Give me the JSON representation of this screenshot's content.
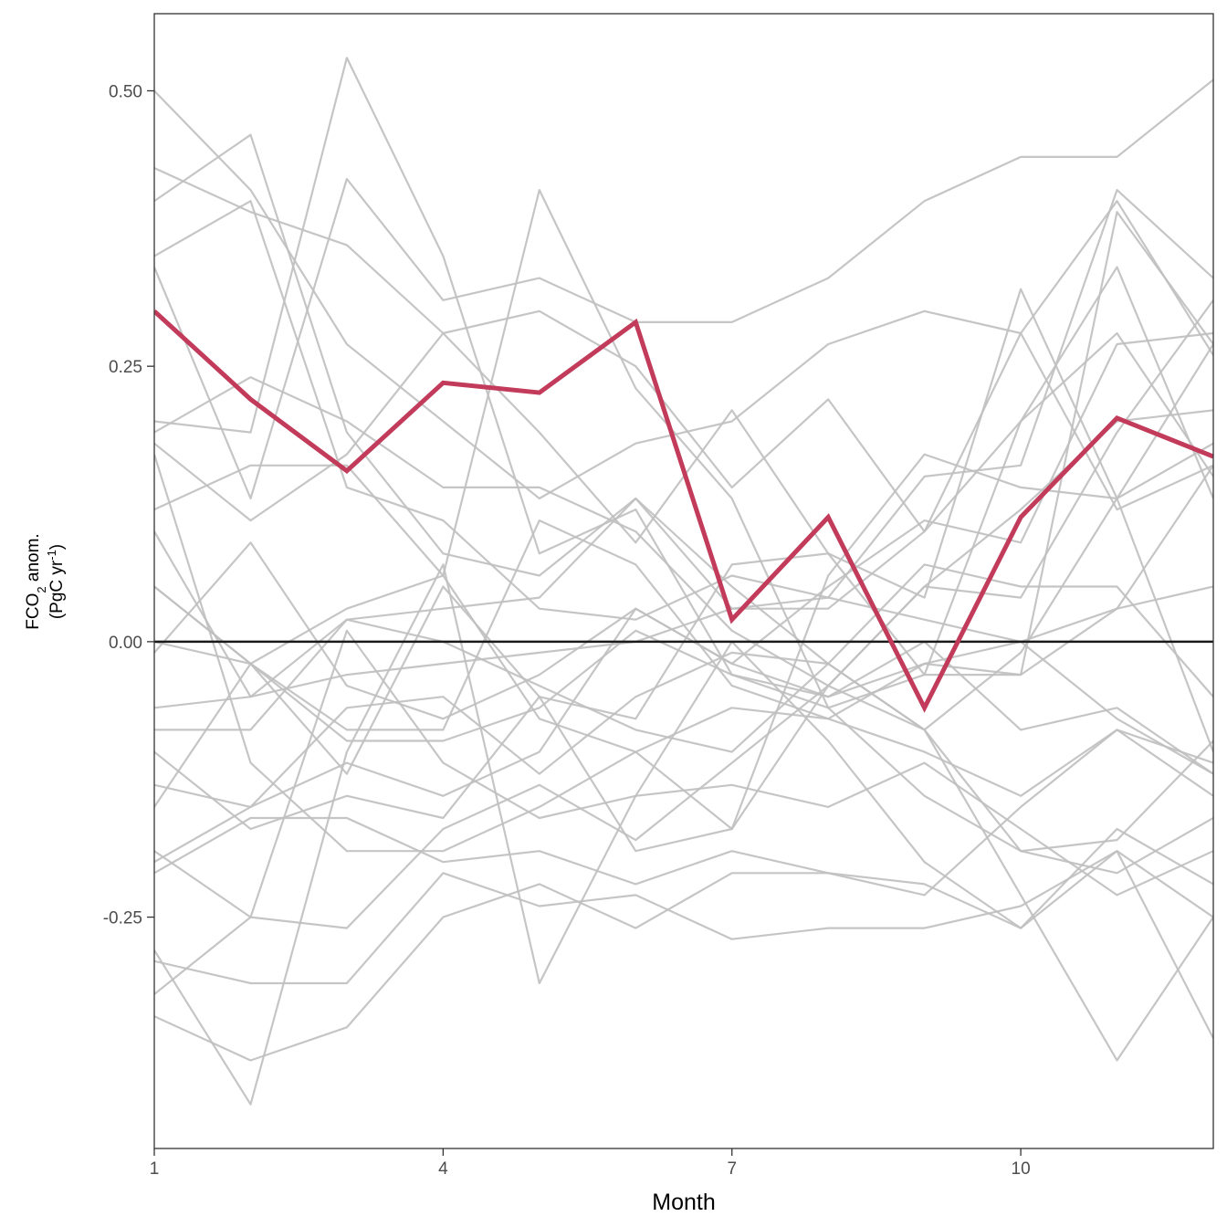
{
  "chart_data": {
    "type": "line",
    "xlabel": "Month",
    "ylabel": {
      "line1_prefix": "FCO",
      "line1_sub": "2",
      "line1_suffix": " anom.",
      "line2_prefix": "(PgC yr",
      "line2_sup": "-1",
      "line2_suffix": ")"
    },
    "x": [
      1,
      2,
      3,
      4,
      5,
      6,
      7,
      8,
      9,
      10,
      11,
      12
    ],
    "xlim": [
      1,
      12
    ],
    "ylim": [
      -0.46,
      0.57
    ],
    "x_ticks": [
      1,
      4,
      7,
      10
    ],
    "x_tick_labels": [
      "1",
      "4",
      "7",
      "10"
    ],
    "y_ticks": [
      -0.25,
      0,
      0.25,
      0.5
    ],
    "y_tick_labels": [
      "-0.25",
      "0.00",
      "0.25",
      "0.50"
    ],
    "grid": false,
    "reference_line": {
      "y": 0,
      "color": "#1a1a1a"
    },
    "highlight_series": {
      "color": "#c23b5a",
      "values": [
        0.3,
        0.22,
        0.155,
        0.235,
        0.226,
        0.29,
        0.02,
        0.113,
        -0.06,
        0.113,
        0.203,
        0.168
      ]
    },
    "ensemble_color": "#bfbfbf",
    "ensemble_series": [
      [
        0.5,
        0.41,
        0.27,
        0.2,
        0.13,
        0.18,
        0.2,
        0.27,
        0.3,
        0.28,
        0.12,
        0.16
      ],
      [
        0.43,
        0.39,
        0.36,
        0.28,
        0.19,
        0.09,
        0.21,
        0.08,
        0.04,
        0.32,
        0.13,
        0.27
      ],
      [
        0.35,
        0.4,
        0.14,
        0.11,
        0.03,
        0.02,
        0.06,
        0.04,
        0.15,
        0.16,
        0.41,
        0.33
      ],
      [
        0.4,
        0.46,
        0.19,
        0.08,
        0.06,
        0.13,
        0.03,
        0.03,
        0.1,
        0.2,
        0.28,
        0.15
      ],
      [
        0.34,
        0.13,
        0.42,
        0.31,
        0.33,
        0.29,
        0.29,
        0.33,
        0.4,
        0.44,
        0.44,
        0.51
      ],
      [
        0.2,
        0.19,
        0.53,
        0.35,
        0.08,
        0.12,
        -0.03,
        -0.05,
        -0.02,
        -0.03,
        0.39,
        0.27
      ],
      [
        0.19,
        0.24,
        0.2,
        0.14,
        0.14,
        0.1,
        0.01,
        -0.04,
        0.05,
        0.04,
        0.19,
        0.31
      ],
      [
        0.18,
        0.11,
        0.17,
        0.28,
        0.3,
        0.25,
        0.14,
        0.22,
        0.1,
        0.28,
        0.4,
        0.26
      ],
      [
        0.12,
        0.16,
        0.16,
        0.06,
        0.41,
        0.23,
        0.13,
        -0.06,
        -0.03,
        0.2,
        0.34,
        0.13
      ],
      [
        0.1,
        -0.05,
        0.02,
        0.03,
        0.04,
        0.13,
        0.05,
        -0.02,
        -0.08,
        -0.01,
        0.13,
        -0.1
      ],
      [
        0.05,
        -0.02,
        -0.12,
        0.05,
        -0.05,
        -0.07,
        0.07,
        0.08,
        -0.03,
        -0.03,
        0.03,
        0.16
      ],
      [
        -0.01,
        0.09,
        -0.04,
        -0.07,
        -0.03,
        0.03,
        -0.02,
        0.05,
        0.11,
        0.09,
        0.27,
        0.28
      ],
      [
        0.0,
        -0.02,
        0.03,
        0.06,
        -0.07,
        -0.1,
        -0.17,
        0.06,
        0.17,
        0.14,
        0.13,
        0.18
      ],
      [
        -0.06,
        -0.05,
        -0.03,
        -0.02,
        -0.01,
        0.0,
        0.03,
        0.04,
        0.02,
        0.0,
        0.03,
        0.05
      ],
      [
        -0.08,
        -0.08,
        0.02,
        0.0,
        -0.04,
        -0.08,
        -0.1,
        -0.02,
        0.07,
        0.05,
        0.05,
        -0.05
      ],
      [
        -0.13,
        -0.15,
        -0.11,
        -0.14,
        -0.1,
        0.03,
        -0.02,
        -0.05,
        0.0,
        -0.08,
        -0.06,
        -0.12
      ],
      [
        -0.15,
        -0.02,
        -0.08,
        -0.08,
        0.11,
        0.07,
        -0.04,
        -0.07,
        -0.1,
        -0.14,
        -0.08,
        -0.11
      ],
      [
        -0.2,
        -0.15,
        -0.06,
        -0.05,
        -0.12,
        -0.05,
        -0.01,
        -0.02,
        -0.08,
        -0.19,
        -0.21,
        -0.16
      ],
      [
        -0.19,
        -0.25,
        0.01,
        -0.11,
        -0.16,
        -0.14,
        -0.13,
        -0.15,
        -0.11,
        -0.17,
        -0.23,
        -0.19
      ],
      [
        -0.21,
        -0.16,
        -0.16,
        -0.2,
        -0.19,
        -0.22,
        -0.19,
        -0.21,
        -0.23,
        -0.15,
        -0.08,
        -0.14
      ],
      [
        -0.29,
        -0.31,
        -0.31,
        -0.21,
        -0.24,
        -0.23,
        -0.27,
        -0.26,
        -0.26,
        -0.24,
        -0.19,
        -0.25
      ],
      [
        -0.32,
        -0.25,
        -0.26,
        -0.17,
        -0.13,
        -0.18,
        -0.11,
        -0.04,
        -0.08,
        -0.23,
        -0.38,
        -0.25
      ],
      [
        -0.34,
        -0.38,
        -0.35,
        -0.25,
        -0.22,
        -0.26,
        -0.21,
        -0.21,
        -0.22,
        -0.26,
        -0.19,
        -0.36
      ],
      [
        -0.28,
        -0.42,
        -0.1,
        0.07,
        -0.31,
        -0.14,
        0.0,
        -0.09,
        -0.2,
        -0.26,
        -0.17,
        -0.22
      ],
      [
        0.17,
        -0.11,
        -0.19,
        -0.19,
        -0.15,
        -0.1,
        -0.06,
        -0.07,
        -0.02,
        0.0,
        -0.07,
        -0.12
      ],
      [
        0.05,
        -0.02,
        -0.09,
        -0.09,
        -0.06,
        0.01,
        -0.03,
        -0.06,
        -0.14,
        -0.19,
        -0.18,
        -0.09
      ],
      [
        -0.1,
        -0.17,
        -0.14,
        -0.16,
        -0.05,
        -0.19,
        -0.17,
        -0.04,
        0.05,
        0.12,
        0.2,
        0.21
      ]
    ]
  }
}
